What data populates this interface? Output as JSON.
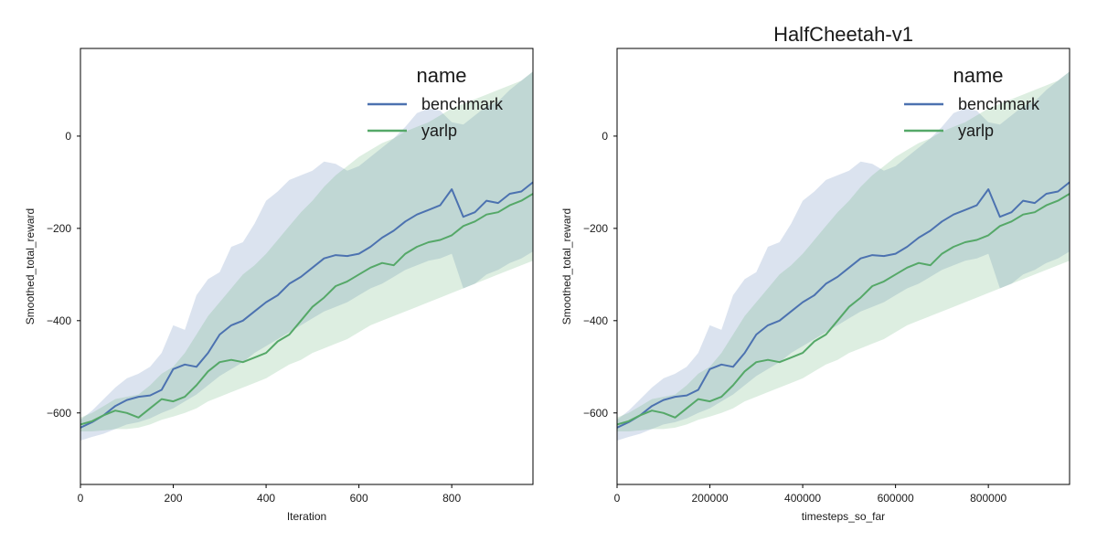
{
  "chart_data": [
    {
      "type": "line",
      "title": "",
      "xlabel": "Iteration",
      "ylabel": "Smoothed_total_reward",
      "xlim": [
        0,
        975
      ],
      "ylim": [
        -755,
        190
      ],
      "xticks": [
        0,
        200,
        400,
        600,
        800
      ],
      "xtick_labels": [
        "0",
        "200",
        "400",
        "600",
        "800"
      ],
      "yticks": [
        -600,
        -400,
        -200,
        0
      ],
      "ytick_labels": [
        "−600",
        "−400",
        "−200",
        "0"
      ],
      "grid": false,
      "legend": {
        "title": "name",
        "position": "top-right"
      },
      "series": [
        {
          "name": "benchmark",
          "color": "#4c72b0",
          "x": [
            0,
            25,
            50,
            75,
            100,
            125,
            150,
            175,
            200,
            225,
            250,
            275,
            300,
            325,
            350,
            375,
            400,
            425,
            450,
            475,
            500,
            525,
            550,
            575,
            600,
            625,
            650,
            675,
            700,
            725,
            750,
            775,
            800,
            825,
            850,
            875,
            900,
            925,
            950,
            975
          ],
          "y": [
            -632,
            -620,
            -605,
            -585,
            -572,
            -565,
            -562,
            -550,
            -505,
            -495,
            -500,
            -470,
            -430,
            -410,
            -400,
            -380,
            -360,
            -345,
            -320,
            -305,
            -285,
            -265,
            -258,
            -260,
            -255,
            -240,
            -220,
            -205,
            -185,
            -170,
            -160,
            -150,
            -115,
            -175,
            -165,
            -140,
            -145,
            -125,
            -120,
            -100
          ],
          "upper": [
            -615,
            -595,
            -570,
            -545,
            -525,
            -515,
            -500,
            -470,
            -410,
            -420,
            -345,
            -310,
            -295,
            -240,
            -230,
            -190,
            -140,
            -120,
            -95,
            -85,
            -75,
            -55,
            -60,
            -75,
            -65,
            -45,
            -25,
            -5,
            20,
            50,
            60,
            55,
            30,
            25,
            45,
            65,
            75,
            100,
            120,
            140
          ],
          "lower": [
            -660,
            -652,
            -645,
            -635,
            -625,
            -620,
            -612,
            -600,
            -590,
            -575,
            -560,
            -540,
            -520,
            -505,
            -490,
            -470,
            -455,
            -440,
            -425,
            -410,
            -395,
            -380,
            -370,
            -360,
            -345,
            -330,
            -320,
            -305,
            -290,
            -280,
            -270,
            -265,
            -255,
            -330,
            -320,
            -300,
            -290,
            -275,
            -265,
            -250
          ]
        },
        {
          "name": "yarlp",
          "color": "#55a868",
          "x": [
            0,
            25,
            50,
            75,
            100,
            125,
            150,
            175,
            200,
            225,
            250,
            275,
            300,
            325,
            350,
            375,
            400,
            425,
            450,
            475,
            500,
            525,
            550,
            575,
            600,
            625,
            650,
            675,
            700,
            725,
            750,
            775,
            800,
            825,
            850,
            875,
            900,
            925,
            950,
            975
          ],
          "y": [
            -625,
            -618,
            -605,
            -595,
            -600,
            -610,
            -590,
            -570,
            -575,
            -565,
            -540,
            -510,
            -490,
            -485,
            -490,
            -480,
            -470,
            -445,
            -430,
            -400,
            -370,
            -350,
            -325,
            -315,
            -300,
            -285,
            -275,
            -280,
            -255,
            -240,
            -230,
            -225,
            -215,
            -195,
            -185,
            -170,
            -165,
            -150,
            -140,
            -125
          ],
          "upper": [
            -610,
            -600,
            -585,
            -570,
            -565,
            -560,
            -540,
            -515,
            -500,
            -470,
            -430,
            -390,
            -360,
            -330,
            -300,
            -280,
            -255,
            -225,
            -195,
            -165,
            -140,
            -110,
            -85,
            -65,
            -45,
            -30,
            -15,
            -5,
            10,
            20,
            30,
            45,
            60,
            70,
            80,
            90,
            100,
            110,
            120,
            140
          ],
          "lower": [
            -640,
            -640,
            -638,
            -635,
            -635,
            -632,
            -625,
            -615,
            -608,
            -600,
            -590,
            -575,
            -565,
            -555,
            -545,
            -535,
            -525,
            -510,
            -495,
            -485,
            -470,
            -460,
            -450,
            -440,
            -425,
            -410,
            -400,
            -390,
            -380,
            -370,
            -360,
            -350,
            -340,
            -330,
            -320,
            -310,
            -300,
            -290,
            -280,
            -270
          ]
        }
      ]
    },
    {
      "type": "line",
      "title": "HalfCheetah-v1",
      "xlabel": "timesteps_so_far",
      "ylabel": "Smoothed_total_reward",
      "xlim": [
        0,
        975000
      ],
      "ylim": [
        -755,
        190
      ],
      "xticks": [
        0,
        200000,
        400000,
        600000,
        800000
      ],
      "xtick_labels": [
        "0",
        "200000",
        "400000",
        "600000",
        "800000"
      ],
      "yticks": [
        -600,
        -400,
        -200,
        0
      ],
      "ytick_labels": [
        "−600",
        "−400",
        "−200",
        "0"
      ],
      "grid": false,
      "legend": {
        "title": "name",
        "position": "top-right"
      },
      "series": [
        {
          "name": "benchmark",
          "color": "#4c72b0",
          "x": [
            0,
            25000,
            50000,
            75000,
            100000,
            125000,
            150000,
            175000,
            200000,
            225000,
            250000,
            275000,
            300000,
            325000,
            350000,
            375000,
            400000,
            425000,
            450000,
            475000,
            500000,
            525000,
            550000,
            575000,
            600000,
            625000,
            650000,
            675000,
            700000,
            725000,
            750000,
            775000,
            800000,
            825000,
            850000,
            875000,
            900000,
            925000,
            950000,
            975000
          ],
          "y": [
            -632,
            -620,
            -605,
            -585,
            -572,
            -565,
            -562,
            -550,
            -505,
            -495,
            -500,
            -470,
            -430,
            -410,
            -400,
            -380,
            -360,
            -345,
            -320,
            -305,
            -285,
            -265,
            -258,
            -260,
            -255,
            -240,
            -220,
            -205,
            -185,
            -170,
            -160,
            -150,
            -115,
            -175,
            -165,
            -140,
            -145,
            -125,
            -120,
            -100
          ],
          "upper": [
            -615,
            -595,
            -570,
            -545,
            -525,
            -515,
            -500,
            -470,
            -410,
            -420,
            -345,
            -310,
            -295,
            -240,
            -230,
            -190,
            -140,
            -120,
            -95,
            -85,
            -75,
            -55,
            -60,
            -75,
            -65,
            -45,
            -25,
            -5,
            20,
            50,
            60,
            55,
            30,
            25,
            45,
            65,
            75,
            100,
            120,
            140
          ],
          "lower": [
            -660,
            -652,
            -645,
            -635,
            -625,
            -620,
            -612,
            -600,
            -590,
            -575,
            -560,
            -540,
            -520,
            -505,
            -490,
            -470,
            -455,
            -440,
            -425,
            -410,
            -395,
            -380,
            -370,
            -360,
            -345,
            -330,
            -320,
            -305,
            -290,
            -280,
            -270,
            -265,
            -255,
            -330,
            -320,
            -300,
            -290,
            -275,
            -265,
            -250
          ]
        },
        {
          "name": "yarlp",
          "color": "#55a868",
          "x": [
            0,
            25000,
            50000,
            75000,
            100000,
            125000,
            150000,
            175000,
            200000,
            225000,
            250000,
            275000,
            300000,
            325000,
            350000,
            375000,
            400000,
            425000,
            450000,
            475000,
            500000,
            525000,
            550000,
            575000,
            600000,
            625000,
            650000,
            675000,
            700000,
            725000,
            750000,
            775000,
            800000,
            825000,
            850000,
            875000,
            900000,
            925000,
            950000,
            975000
          ],
          "y": [
            -625,
            -618,
            -605,
            -595,
            -600,
            -610,
            -590,
            -570,
            -575,
            -565,
            -540,
            -510,
            -490,
            -485,
            -490,
            -480,
            -470,
            -445,
            -430,
            -400,
            -370,
            -350,
            -325,
            -315,
            -300,
            -285,
            -275,
            -280,
            -255,
            -240,
            -230,
            -225,
            -215,
            -195,
            -185,
            -170,
            -165,
            -150,
            -140,
            -125
          ],
          "upper": [
            -610,
            -600,
            -585,
            -570,
            -565,
            -560,
            -540,
            -515,
            -500,
            -470,
            -430,
            -390,
            -360,
            -330,
            -300,
            -280,
            -255,
            -225,
            -195,
            -165,
            -140,
            -110,
            -85,
            -65,
            -45,
            -30,
            -15,
            -5,
            10,
            20,
            30,
            45,
            60,
            70,
            80,
            90,
            100,
            110,
            120,
            140
          ],
          "lower": [
            -640,
            -640,
            -638,
            -635,
            -635,
            -632,
            -625,
            -615,
            -608,
            -600,
            -590,
            -575,
            -565,
            -555,
            -545,
            -535,
            -525,
            -510,
            -495,
            -485,
            -470,
            -460,
            -450,
            -440,
            -425,
            -410,
            -400,
            -390,
            -380,
            -370,
            -360,
            -350,
            -340,
            -330,
            -320,
            -310,
            -300,
            -290,
            -280,
            -270
          ]
        }
      ]
    }
  ]
}
